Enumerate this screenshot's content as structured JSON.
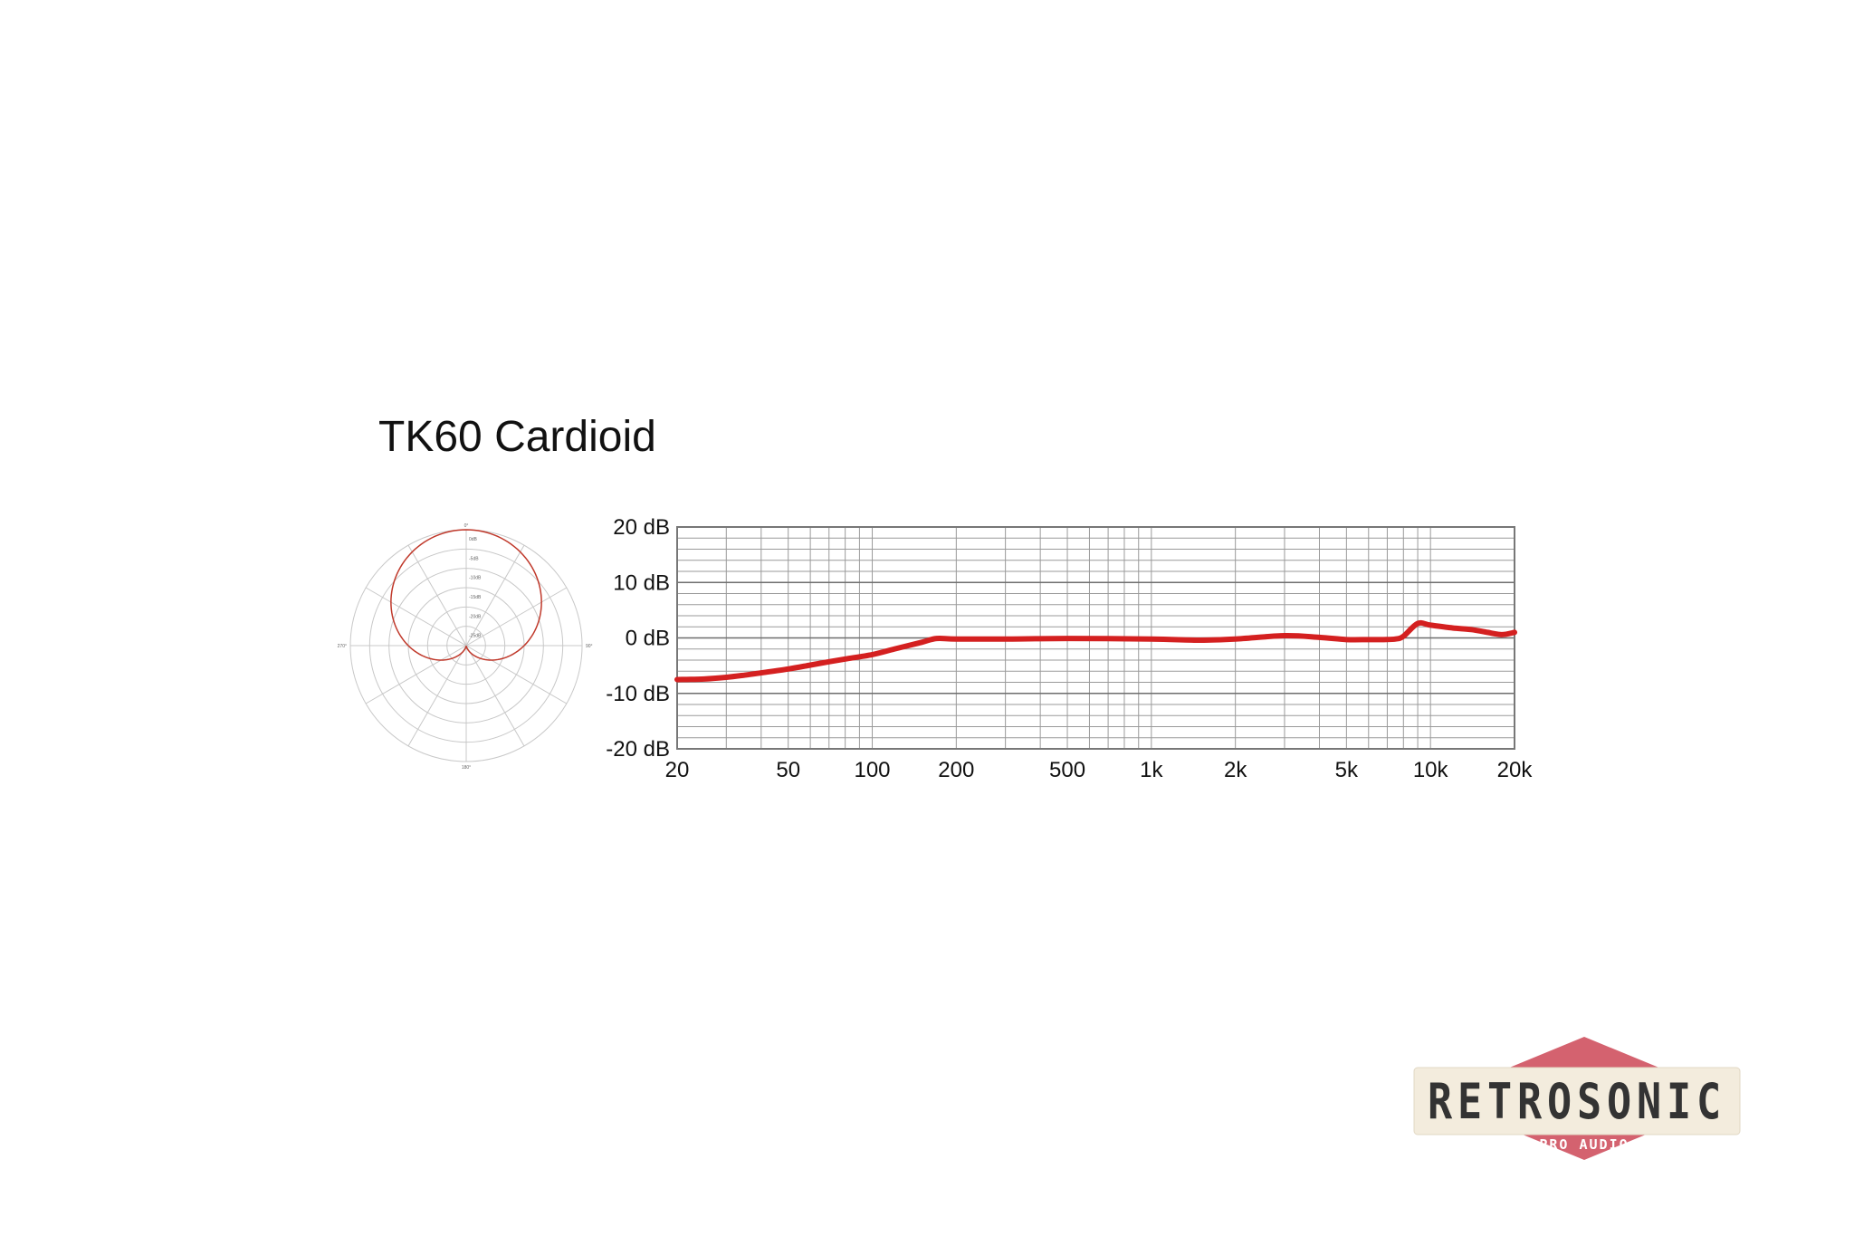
{
  "title": "TK60 Cardioid",
  "polar_chart": {
    "pattern": "cardioid",
    "angle_labels": [
      "0°",
      "90°",
      "180°",
      "270°"
    ],
    "ring_labels": [
      "0dB",
      "-5dB",
      "-10dB",
      "-15dB",
      "-20dB",
      "-25dB"
    ],
    "curve_color": "#c0392b",
    "grid_color": "#c8c8c8"
  },
  "chart_data": {
    "type": "line",
    "title": "",
    "xlabel": "",
    "ylabel": "",
    "x_scale": "log",
    "xlim": [
      20,
      20000
    ],
    "ylim": [
      -20,
      20
    ],
    "grid": true,
    "x_ticks": [
      20,
      50,
      100,
      200,
      500,
      1000,
      2000,
      5000,
      10000,
      20000
    ],
    "x_tick_labels": [
      "20",
      "50",
      "100",
      "200",
      "500",
      "1k",
      "2k",
      "5k",
      "10k",
      "20k"
    ],
    "y_ticks": [
      20,
      10,
      0,
      -10,
      -20
    ],
    "y_tick_labels": [
      "20 dB",
      "10 dB",
      "0 dB",
      "-10 dB",
      "-20 dB"
    ],
    "series": [
      {
        "color": "#d42020",
        "x": [
          20,
          25,
          30,
          35,
          40,
          50,
          60,
          70,
          80,
          100,
          120,
          150,
          170,
          200,
          300,
          500,
          1000,
          1500,
          2000,
          3000,
          4000,
          5000,
          6000,
          6800,
          7500,
          8000,
          9000,
          10000,
          12000,
          14000,
          16000,
          18000,
          20000
        ],
        "y": [
          -7.5,
          -7.4,
          -7.1,
          -6.7,
          -6.3,
          -5.6,
          -4.9,
          -4.3,
          -3.8,
          -3.0,
          -2.0,
          -0.8,
          -0.1,
          -0.2,
          -0.2,
          -0.1,
          -0.2,
          -0.4,
          -0.2,
          0.4,
          0.1,
          -0.3,
          -0.3,
          -0.3,
          -0.2,
          0.3,
          2.6,
          2.3,
          1.8,
          1.5,
          1.0,
          0.6,
          1.0
        ]
      }
    ]
  },
  "logo": {
    "name": "RETROSONIC",
    "sub": "PRO AUDIO",
    "diamond_color": "#d4626f",
    "band_color": "#f3ecdd",
    "text_color": "#333333",
    "sub_text_color": "#ffffff"
  }
}
